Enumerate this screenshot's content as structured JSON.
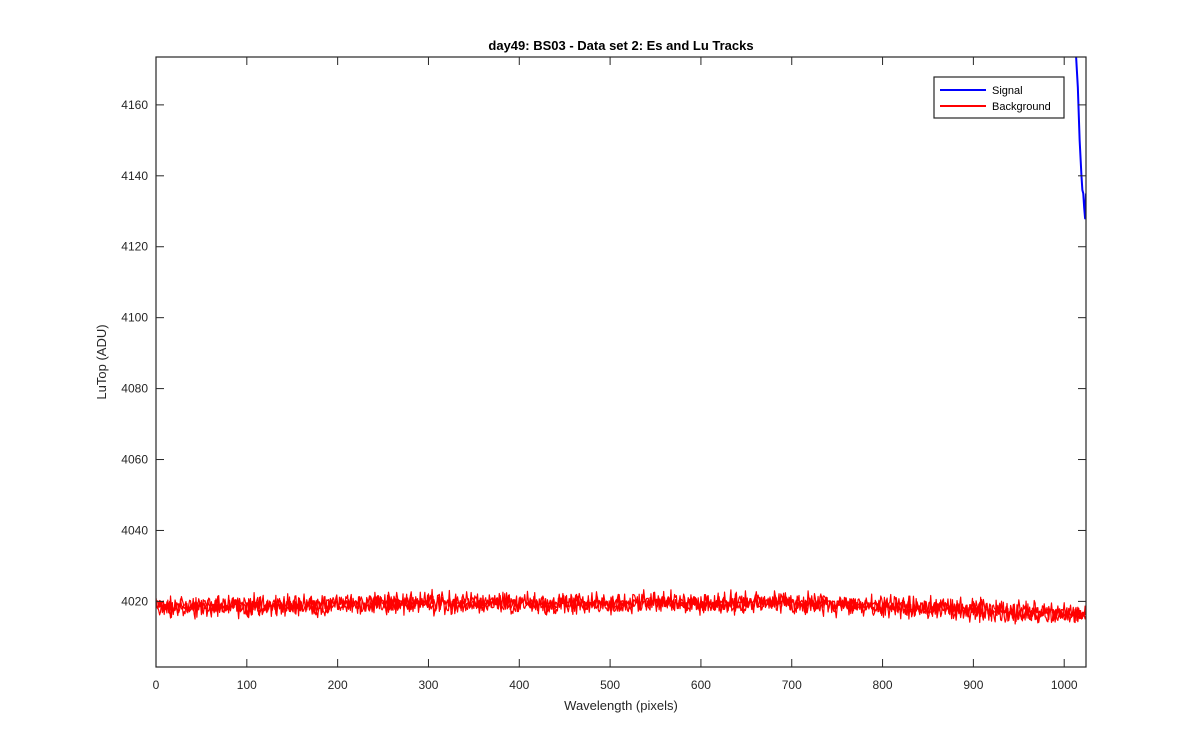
{
  "chart_data": {
    "type": "line",
    "title": "day49: BS03 - Data set 2: Es and Lu Tracks",
    "xlabel": "Wavelength (pixels)",
    "ylabel": "LuTop (ADU)",
    "xlim": [
      0,
      1024
    ],
    "ylim": [
      4001.5,
      4173.5
    ],
    "xticks": [
      0,
      100,
      200,
      300,
      400,
      500,
      600,
      700,
      800,
      900,
      1000
    ],
    "yticks": [
      4020,
      4040,
      4060,
      4080,
      4100,
      4120,
      4140,
      4160
    ],
    "grid": false,
    "legend_position": "top-right",
    "series": [
      {
        "name": "Signal",
        "color": "#0000ff",
        "points": [
          [
            1013,
            4174
          ],
          [
            1015,
            4165
          ],
          [
            1017,
            4150
          ],
          [
            1019,
            4140
          ],
          [
            1020,
            4136
          ],
          [
            1021,
            4135
          ],
          [
            1022,
            4131
          ],
          [
            1023,
            4128
          ],
          [
            1024,
            4135
          ]
        ]
      },
      {
        "name": "Background",
        "color": "#ff0000",
        "noise_band": 2.5,
        "trend": [
          [
            0,
            4018.5
          ],
          [
            100,
            4018.5
          ],
          [
            200,
            4019
          ],
          [
            300,
            4019.5
          ],
          [
            400,
            4019.5
          ],
          [
            500,
            4019.5
          ],
          [
            540,
            4020
          ],
          [
            600,
            4019.5
          ],
          [
            700,
            4019.5
          ],
          [
            800,
            4018.5
          ],
          [
            900,
            4017.5
          ],
          [
            1000,
            4016.5
          ],
          [
            1024,
            4016.5
          ]
        ]
      }
    ]
  }
}
